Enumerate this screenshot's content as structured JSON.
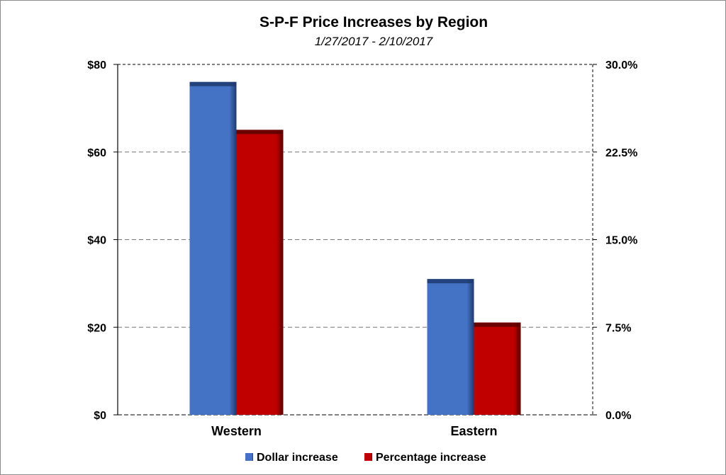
{
  "chart_data": {
    "type": "bar",
    "title": "S-P-F Price Increases by Region",
    "subtitle": "1/27/2017 - 2/10/2017",
    "categories": [
      "Western",
      "Eastern"
    ],
    "series": [
      {
        "name": "Dollar increase",
        "axis": "left",
        "values": [
          76,
          31
        ],
        "color": "#4472c4"
      },
      {
        "name": "Percentage increase",
        "axis": "right",
        "values": [
          24.4,
          7.9
        ],
        "color": "#c00000"
      }
    ],
    "y_left": {
      "ylim": [
        0,
        80
      ],
      "ticks": [
        0,
        20,
        40,
        60,
        80
      ],
      "tick_labels": [
        "$0",
        "$20",
        "$40",
        "$60",
        "$80"
      ]
    },
    "y_right": {
      "ylim": [
        0,
        30
      ],
      "ticks": [
        0,
        7.5,
        15,
        22.5,
        30
      ],
      "tick_labels": [
        "0.0%",
        "7.5%",
        "15.0%",
        "22.5%",
        "30.0%"
      ]
    },
    "grid": true,
    "grid_style": "dashed",
    "legend_position": "bottom"
  }
}
